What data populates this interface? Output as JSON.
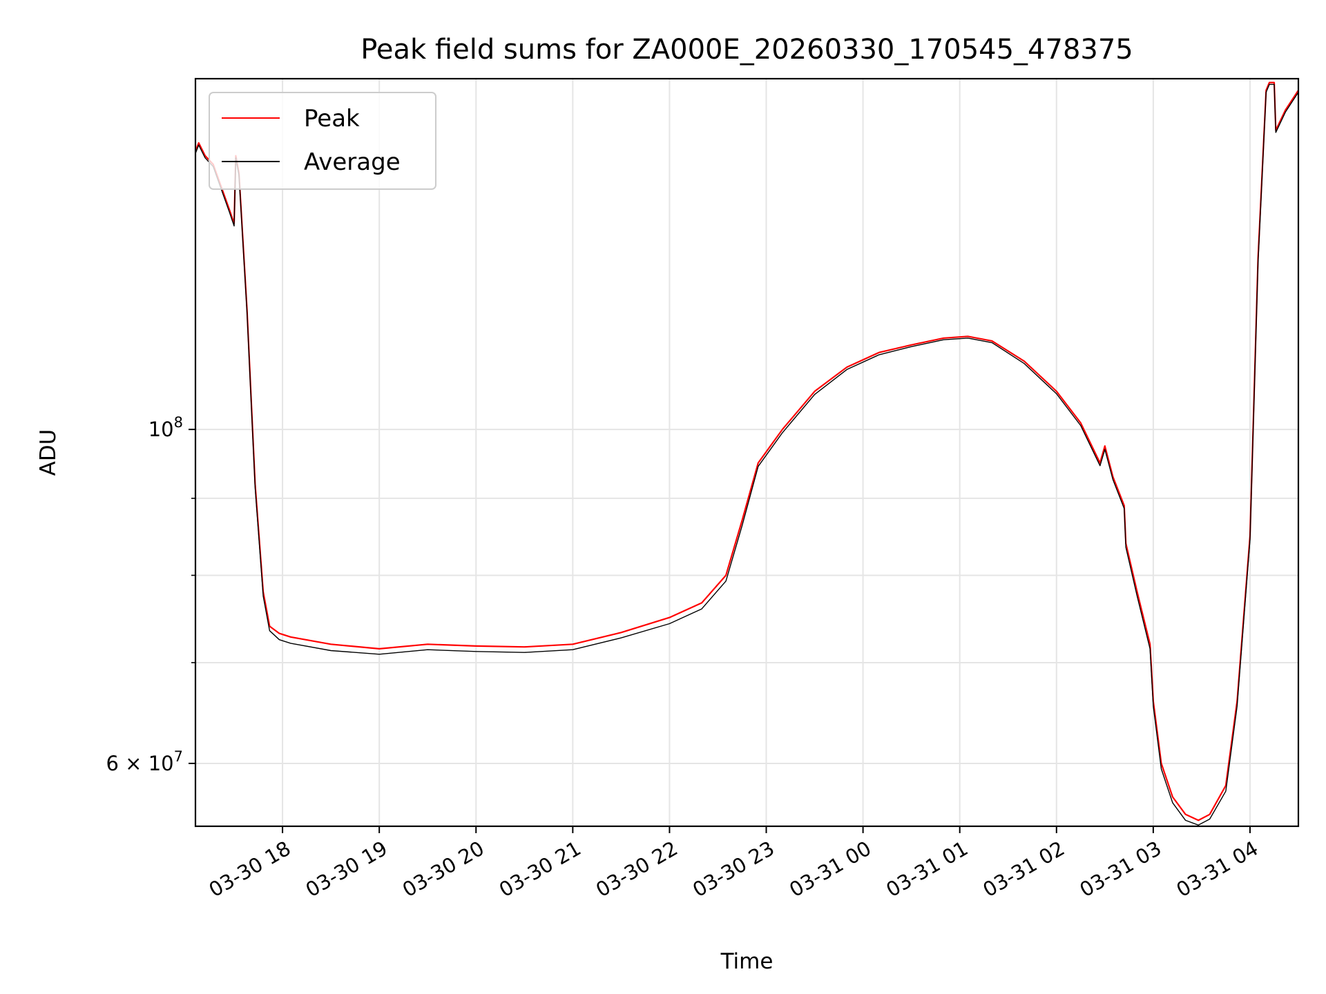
{
  "chart_data": {
    "type": "line",
    "title": "Peak field sums for ZA000E_20260330_170545_478375",
    "xlabel": "Time",
    "ylabel": "ADU",
    "x_type": "datetime",
    "xlim": [
      "2026-03-30 17:06",
      "2026-03-31 04:30"
    ],
    "ylim": [
      54500000,
      171000000
    ],
    "y_scale": "log",
    "grid": true,
    "legend_position": "upper left",
    "x_tick_labels": [
      "03-30 18",
      "03-30 19",
      "03-30 20",
      "03-30 21",
      "03-30 22",
      "03-30 23",
      "03-31 00",
      "03-31 01",
      "03-31 02",
      "03-31 03",
      "03-31 04"
    ],
    "x_ticks": [
      "2026-03-30 18:00",
      "2026-03-30 19:00",
      "2026-03-30 20:00",
      "2026-03-30 21:00",
      "2026-03-30 22:00",
      "2026-03-30 23:00",
      "2026-03-31 00:00",
      "2026-03-31 01:00",
      "2026-03-31 02:00",
      "2026-03-31 03:00",
      "2026-03-31 04:00"
    ],
    "y_tick_labels": [
      {
        "value": 100000000,
        "base": "10",
        "exp": "8"
      },
      {
        "value": 60000000,
        "mant": "6",
        "base": "10",
        "exp": "7"
      }
    ],
    "y_minor_ticks": [
      70000000,
      80000000,
      90000000
    ],
    "series": [
      {
        "name": "Peak",
        "color": "#ff0000",
        "x": [
          "2026-03-30 17:06",
          "2026-03-30 17:08",
          "2026-03-30 17:12",
          "2026-03-30 17:17",
          "2026-03-30 17:27",
          "2026-03-30 17:30",
          "2026-03-30 17:31",
          "2026-03-30 17:33",
          "2026-03-30 17:38",
          "2026-03-30 17:43",
          "2026-03-30 17:48",
          "2026-03-30 17:52",
          "2026-03-30 17:58",
          "2026-03-30 18:05",
          "2026-03-30 18:30",
          "2026-03-30 19:00",
          "2026-03-30 19:30",
          "2026-03-30 20:00",
          "2026-03-30 20:30",
          "2026-03-30 21:00",
          "2026-03-30 21:30",
          "2026-03-30 22:00",
          "2026-03-30 22:20",
          "2026-03-30 22:35",
          "2026-03-30 22:45",
          "2026-03-30 22:55",
          "2026-03-30 23:10",
          "2026-03-30 23:30",
          "2026-03-30 23:50",
          "2026-03-31 00:10",
          "2026-03-31 00:30",
          "2026-03-31 00:50",
          "2026-03-31 01:05",
          "2026-03-31 01:20",
          "2026-03-31 01:40",
          "2026-03-31 02:00",
          "2026-03-31 02:15",
          "2026-03-31 02:27",
          "2026-03-31 02:30",
          "2026-03-31 02:35",
          "2026-03-31 02:42",
          "2026-03-31 02:43",
          "2026-03-31 02:50",
          "2026-03-31 02:58",
          "2026-03-31 03:00",
          "2026-03-31 03:05",
          "2026-03-31 03:12",
          "2026-03-31 03:20",
          "2026-03-31 03:28",
          "2026-03-31 03:35",
          "2026-03-31 03:45",
          "2026-03-31 03:52",
          "2026-03-31 04:00",
          "2026-03-31 04:05",
          "2026-03-31 04:10",
          "2026-03-31 04:12",
          "2026-03-31 04:15",
          "2026-03-31 04:16",
          "2026-03-31 04:22",
          "2026-03-31 04:30"
        ],
        "y": [
          153000000,
          155000000,
          152000000,
          150000000,
          140000000,
          137000000,
          152000000,
          148000000,
          120000000,
          92000000,
          78000000,
          74000000,
          73200000,
          72800000,
          72000000,
          71500000,
          72000000,
          71800000,
          71700000,
          72000000,
          73300000,
          75000000,
          76700000,
          80000000,
          87000000,
          95000000,
          100000000,
          106000000,
          110000000,
          112500000,
          113800000,
          115000000,
          115300000,
          114500000,
          111000000,
          106000000,
          101000000,
          95000000,
          97500000,
          93000000,
          89000000,
          84000000,
          78000000,
          72000000,
          66000000,
          60000000,
          57000000,
          55500000,
          55000000,
          55500000,
          58000000,
          66000000,
          85000000,
          130000000,
          168000000,
          170000000,
          170000000,
          158000000,
          163000000,
          168000000
        ]
      },
      {
        "name": "Average",
        "color": "#000000",
        "x": [
          "2026-03-30 17:06",
          "2026-03-30 17:08",
          "2026-03-30 17:12",
          "2026-03-30 17:17",
          "2026-03-30 17:27",
          "2026-03-30 17:30",
          "2026-03-30 17:31",
          "2026-03-30 17:33",
          "2026-03-30 17:38",
          "2026-03-30 17:43",
          "2026-03-30 17:48",
          "2026-03-30 17:52",
          "2026-03-30 17:58",
          "2026-03-30 18:05",
          "2026-03-30 18:30",
          "2026-03-30 19:00",
          "2026-03-30 19:30",
          "2026-03-30 20:00",
          "2026-03-30 20:30",
          "2026-03-30 21:00",
          "2026-03-30 21:30",
          "2026-03-30 22:00",
          "2026-03-30 22:20",
          "2026-03-30 22:35",
          "2026-03-30 22:45",
          "2026-03-30 22:55",
          "2026-03-30 23:10",
          "2026-03-30 23:30",
          "2026-03-30 23:50",
          "2026-03-31 00:10",
          "2026-03-31 00:30",
          "2026-03-31 00:50",
          "2026-03-31 01:05",
          "2026-03-31 01:20",
          "2026-03-31 01:40",
          "2026-03-31 02:00",
          "2026-03-31 02:15",
          "2026-03-31 02:27",
          "2026-03-31 02:30",
          "2026-03-31 02:35",
          "2026-03-31 02:42",
          "2026-03-31 02:43",
          "2026-03-31 02:50",
          "2026-03-31 02:58",
          "2026-03-31 03:00",
          "2026-03-31 03:05",
          "2026-03-31 03:12",
          "2026-03-31 03:20",
          "2026-03-31 03:28",
          "2026-03-31 03:35",
          "2026-03-31 03:45",
          "2026-03-31 03:52",
          "2026-03-31 04:00",
          "2026-03-31 04:05",
          "2026-03-31 04:10",
          "2026-03-31 04:12",
          "2026-03-31 04:15",
          "2026-03-31 04:16",
          "2026-03-31 04:22",
          "2026-03-31 04:30"
        ],
        "y": [
          152500000,
          154500000,
          151500000,
          149500000,
          139500000,
          136500000,
          151500000,
          147500000,
          119500000,
          91500000,
          77500000,
          73500000,
          72500000,
          72100000,
          71300000,
          70900000,
          71400000,
          71200000,
          71100000,
          71400000,
          72700000,
          74300000,
          76000000,
          79300000,
          86300000,
          94500000,
          99500000,
          105500000,
          109600000,
          112100000,
          113500000,
          114700000,
          115000000,
          114200000,
          110600000,
          105600000,
          100600000,
          94600000,
          97000000,
          92600000,
          88600000,
          83500000,
          77500000,
          71500000,
          65500000,
          59500000,
          56500000,
          55000000,
          54600000,
          55100000,
          57500000,
          65500000,
          84500000,
          129000000,
          167500000,
          169500000,
          169500000,
          157500000,
          162500000,
          167500000
        ]
      }
    ]
  }
}
